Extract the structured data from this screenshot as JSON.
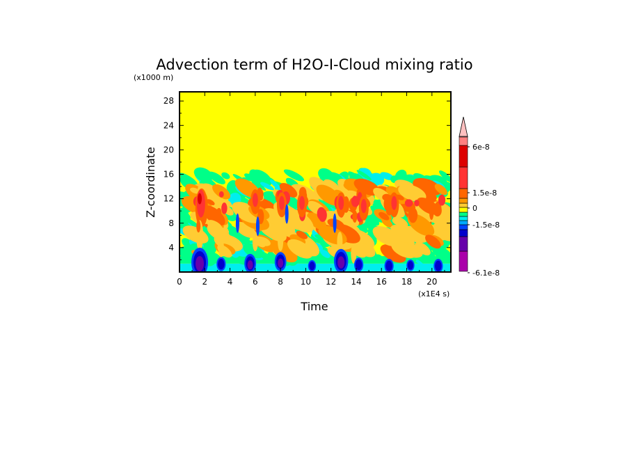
{
  "chart_data": {
    "type": "heatmap",
    "title": "Advection term of H2O-I-Cloud mixing ratio",
    "xlabel": "Time",
    "x_unit": "(x1E4 s)",
    "ylabel": "Z-coordinate",
    "y_unit": "(x1000 m)",
    "xlim": [
      0,
      21.5
    ],
    "ylim": [
      0,
      29.5
    ],
    "x_ticks": [
      "0",
      "2",
      "4",
      "6",
      "8",
      "10",
      "12",
      "14",
      "16",
      "18",
      "20"
    ],
    "y_ticks": [
      "4",
      "8",
      "12",
      "16",
      "20",
      "24",
      "28"
    ],
    "colorbar": {
      "labels": [
        "6e-8",
        "1.5e-8",
        "0",
        "-1.5e-8",
        "-6.1e-8"
      ],
      "label_values": [
        6e-08,
        1.5e-08,
        0,
        -1.5e-08,
        -6.1e-08
      ],
      "vmin": -6.1e-08,
      "vmax": 6e-08,
      "colors": [
        "#aa00aa",
        "#6600aa",
        "#0000cc",
        "#0044ff",
        "#00aaff",
        "#00eeee",
        "#00ff88",
        "#ffff00",
        "#ffcc33",
        "#ff9900",
        "#ff6600",
        "#ff3333",
        "#dd0000",
        "#ff8080",
        "#ffc0c0"
      ]
    },
    "background_value_color": "#ffff00",
    "active_layer_top": 16,
    "features": [
      {
        "x": 1.6,
        "z": 1.5,
        "value": -6e-08
      },
      {
        "x": 1.7,
        "z": 11.0,
        "value": 5.5e-08
      },
      {
        "x": 6.0,
        "z": 11.5,
        "value": 4.5e-08
      },
      {
        "x": 8.1,
        "z": 11.0,
        "value": 4e-08
      },
      {
        "x": 12.8,
        "z": 11.0,
        "value": 4e-08
      },
      {
        "x": 12.8,
        "z": 1.8,
        "value": -4.5e-08
      },
      {
        "x": 5.6,
        "z": 1.5,
        "value": -3.5e-08
      },
      {
        "x": 8.0,
        "z": 1.8,
        "value": -3e-08
      }
    ]
  }
}
